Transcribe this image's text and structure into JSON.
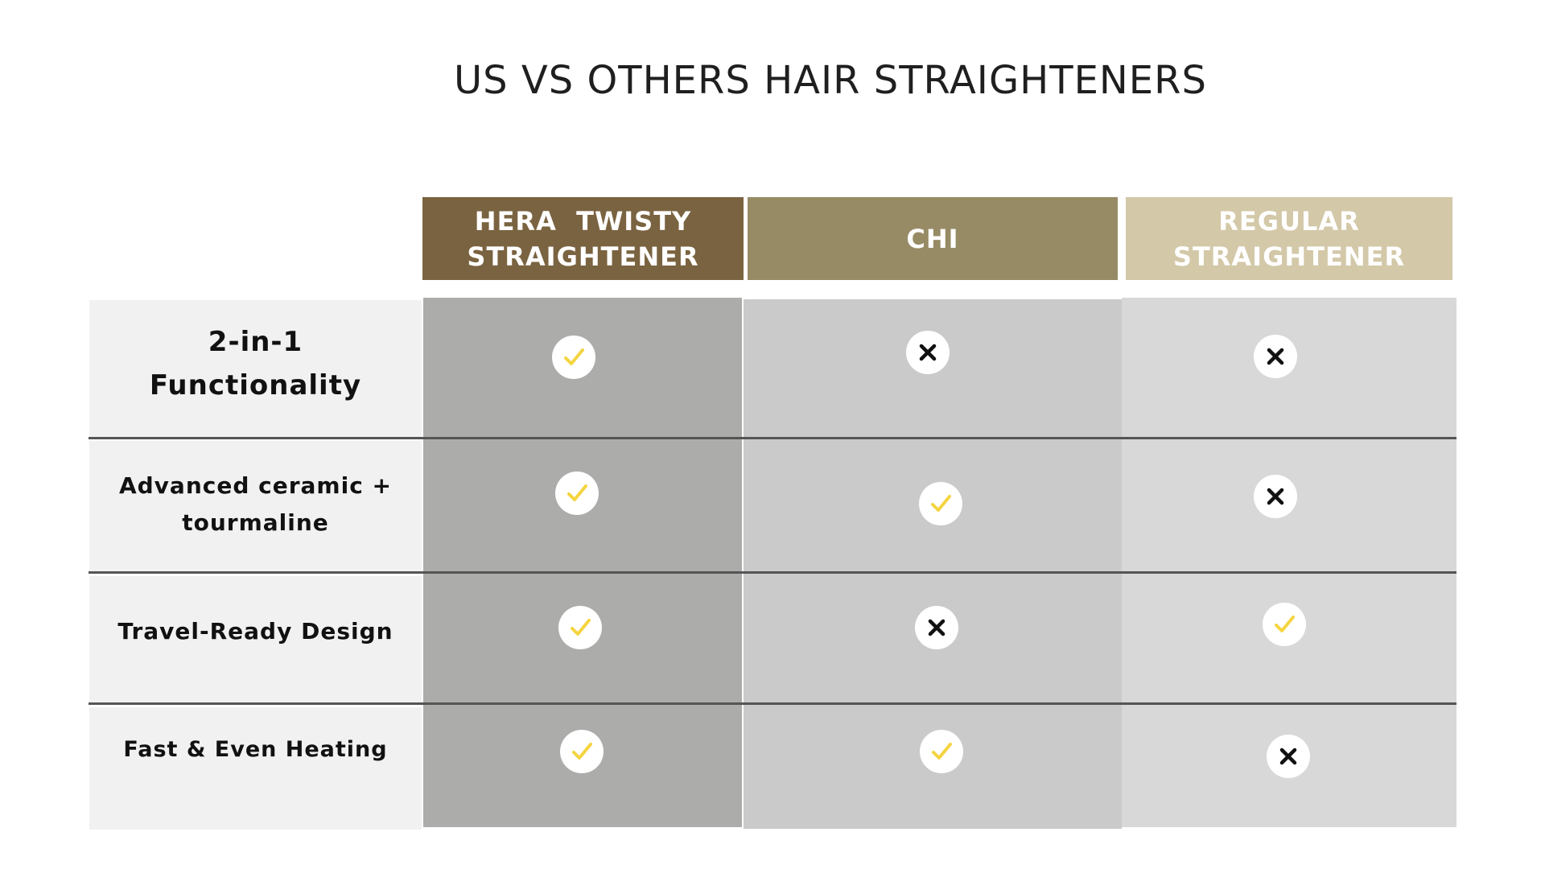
{
  "title": "US VS OTHERS HAIR STRAIGHTENERS",
  "colors": {
    "hera_header": "#7a6340",
    "chi_header": "#978b66",
    "regular_header": "#d3c8a8",
    "hera_column": "#acacab",
    "chi_column": "#cacaca",
    "regular_column": "#d8d8d8",
    "label_column": "#f1f1f1",
    "check": "#f5d440",
    "cross": "#111111"
  },
  "columns": [
    {
      "line1": "HERA  TWISTY",
      "line2": "STRAIGHTENER"
    },
    {
      "line1": "CHI",
      "line2": ""
    },
    {
      "line1": "REGULAR",
      "line2": "STRAIGHTENER"
    }
  ],
  "rows": [
    {
      "line1": "2-in-1",
      "line2": "Functionality",
      "marks": [
        "check-icon",
        "cross-icon",
        "cross-icon"
      ]
    },
    {
      "line1": "Advanced ceramic +",
      "line2": "tourmaline",
      "marks": [
        "check-icon",
        "check-icon",
        "cross-icon"
      ]
    },
    {
      "line1": "Travel-Ready Design",
      "line2": "",
      "marks": [
        "check-icon",
        "cross-icon",
        "check-icon"
      ]
    },
    {
      "line1": "Fast & Even Heating",
      "line2": "",
      "marks": [
        "check-icon",
        "check-icon",
        "cross-icon"
      ]
    }
  ]
}
